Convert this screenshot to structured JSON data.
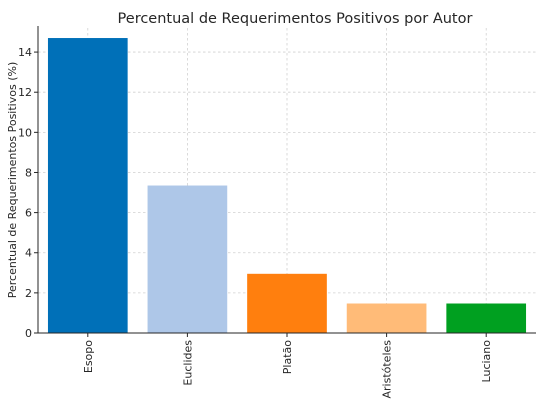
{
  "chart_data": {
    "type": "bar",
    "title": "Percentual de Requerimentos Positivos por Autor",
    "xlabel": "",
    "ylabel": "Percentual de Requerimentos Positivos (%)",
    "categories": [
      "Esopo",
      "Euclides",
      "Platão",
      "Aristóteles",
      "Luciano"
    ],
    "values": [
      14.7,
      7.35,
      2.95,
      1.47,
      1.47
    ],
    "colors": [
      "#0070b8",
      "#aec7e8",
      "#ff7f0e",
      "#ffbb78",
      "#00a020"
    ],
    "ylim": [
      0,
      15.2
    ],
    "yticks": [
      0,
      2,
      4,
      6,
      8,
      10,
      12,
      14
    ],
    "grid": true,
    "legend": "none"
  }
}
